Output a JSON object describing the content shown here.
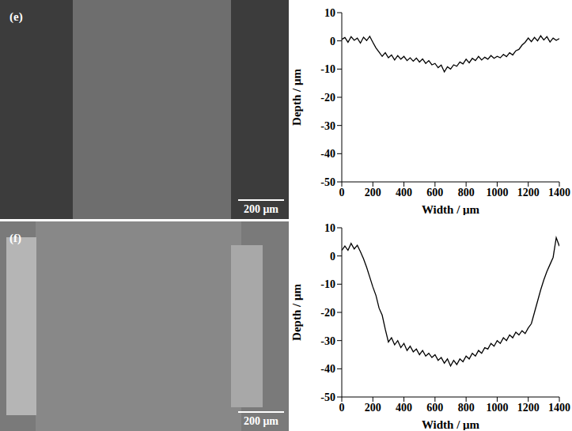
{
  "images": [
    {
      "label": "(e)",
      "scale_bar": "200 μm"
    },
    {
      "label": "(f)",
      "scale_bar": "200 μm"
    }
  ],
  "chart_data": [
    {
      "type": "line",
      "xlabel": "Width / μm",
      "ylabel": "Depth / μm",
      "xlim": [
        0,
        1400
      ],
      "ylim": [
        -50,
        10
      ],
      "xticks": [
        0,
        200,
        400,
        600,
        800,
        1000,
        1200,
        1400
      ],
      "yticks": [
        -50,
        -40,
        -30,
        -20,
        -10,
        0,
        10
      ],
      "color": "#000000",
      "x": [
        0,
        20,
        40,
        60,
        80,
        100,
        120,
        140,
        160,
        180,
        200,
        220,
        240,
        260,
        280,
        300,
        320,
        340,
        360,
        380,
        400,
        420,
        440,
        460,
        480,
        500,
        520,
        540,
        560,
        580,
        600,
        620,
        640,
        660,
        680,
        700,
        720,
        740,
        760,
        780,
        800,
        820,
        840,
        860,
        880,
        900,
        920,
        940,
        960,
        980,
        1000,
        1020,
        1040,
        1060,
        1080,
        1100,
        1120,
        1140,
        1160,
        1180,
        1200,
        1220,
        1240,
        1260,
        1280,
        1300,
        1320,
        1340,
        1360,
        1380,
        1400
      ],
      "values": [
        0.5,
        1.2,
        -0.5,
        1.5,
        0.2,
        1.0,
        -0.8,
        1.3,
        0.1,
        1.6,
        -0.5,
        -2.5,
        -4.0,
        -5.5,
        -4.2,
        -6.0,
        -5.0,
        -6.8,
        -5.2,
        -6.5,
        -5.5,
        -7.0,
        -6.0,
        -7.2,
        -6.1,
        -7.5,
        -6.4,
        -8.0,
        -7.0,
        -8.5,
        -8.0,
        -9.5,
        -8.6,
        -11.0,
        -9.2,
        -10.0,
        -8.5,
        -9.0,
        -7.5,
        -8.2,
        -6.5,
        -7.8,
        -6.2,
        -7.0,
        -5.5,
        -6.8,
        -5.8,
        -6.5,
        -5.2,
        -6.2,
        -5.5,
        -6.0,
        -4.8,
        -5.6,
        -4.2,
        -5.0,
        -3.5,
        -3.0,
        -1.5,
        -0.5,
        1.0,
        -0.3,
        1.2,
        0.0,
        1.8,
        0.3,
        1.5,
        -0.4,
        1.0,
        0.2,
        0.8
      ]
    },
    {
      "type": "line",
      "xlabel": "Width / μm",
      "ylabel": "Depth / μm",
      "xlim": [
        0,
        1400
      ],
      "ylim": [
        -50,
        10
      ],
      "xticks": [
        0,
        200,
        400,
        600,
        800,
        1000,
        1200,
        1400
      ],
      "yticks": [
        -50,
        -40,
        -30,
        -20,
        -10,
        0,
        10
      ],
      "color": "#000000",
      "x": [
        0,
        20,
        40,
        60,
        80,
        100,
        120,
        140,
        160,
        180,
        200,
        220,
        240,
        260,
        280,
        300,
        320,
        340,
        360,
        380,
        400,
        420,
        440,
        460,
        480,
        500,
        520,
        540,
        560,
        580,
        600,
        620,
        640,
        660,
        680,
        700,
        720,
        740,
        760,
        780,
        800,
        820,
        840,
        860,
        880,
        900,
        920,
        940,
        960,
        980,
        1000,
        1020,
        1040,
        1060,
        1080,
        1100,
        1120,
        1140,
        1160,
        1180,
        1200,
        1220,
        1240,
        1260,
        1280,
        1300,
        1320,
        1340,
        1360,
        1380,
        1400
      ],
      "values": [
        2.0,
        3.5,
        2.0,
        4.5,
        2.5,
        3.8,
        1.5,
        -1.0,
        -4.0,
        -7.5,
        -11.0,
        -14.0,
        -18.5,
        -21.0,
        -26.0,
        -30.5,
        -29.0,
        -31.5,
        -30.0,
        -32.5,
        -31.0,
        -33.5,
        -32.0,
        -34.0,
        -33.0,
        -35.0,
        -33.5,
        -35.5,
        -34.5,
        -36.0,
        -35.0,
        -37.0,
        -36.0,
        -38.0,
        -36.5,
        -39.0,
        -37.0,
        -38.5,
        -36.5,
        -37.5,
        -35.5,
        -36.5,
        -34.5,
        -35.5,
        -33.5,
        -34.5,
        -32.5,
        -33.0,
        -31.0,
        -32.0,
        -30.0,
        -31.0,
        -29.0,
        -30.0,
        -28.0,
        -29.0,
        -27.0,
        -28.0,
        -26.5,
        -27.5,
        -25.5,
        -24.0,
        -20.0,
        -16.0,
        -12.0,
        -8.5,
        -5.5,
        -3.0,
        -0.5,
        6.5,
        3.5
      ]
    }
  ]
}
